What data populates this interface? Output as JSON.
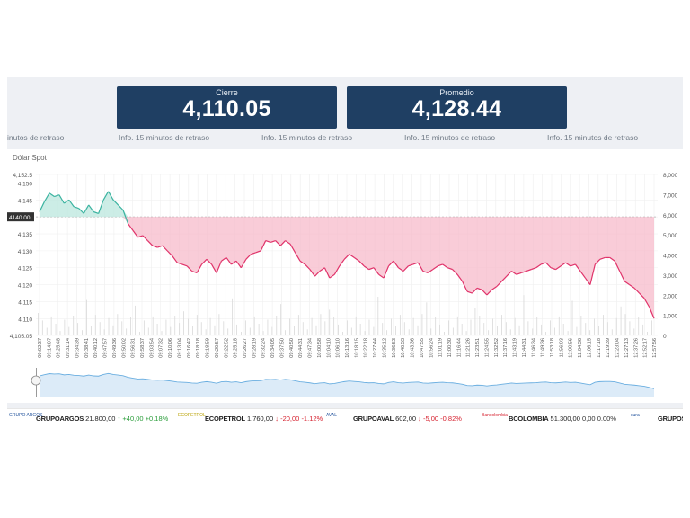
{
  "cards": [
    {
      "label": "Cierre",
      "value": "4,110.05"
    },
    {
      "label": "Promedio",
      "value": "4,128.44"
    }
  ],
  "info_texts": [
    "inutos de retraso",
    "Info. 15 minutos de retraso",
    "Info. 15 minutos de retraso",
    "Info. 15 minutos de retraso",
    "Info. 15 minutos de retraso"
  ],
  "chart_data": {
    "type": "line",
    "title": "Dólar Spot",
    "reference_line": 4140.0,
    "reference_label": "4140.00",
    "y_left_ticks": [
      "4,152.5",
      "4,150",
      "4,145",
      "4,140",
      "4,135",
      "4,130",
      "4,125",
      "4,120",
      "4,115",
      "4,110",
      "4,105.05"
    ],
    "y_left_range": [
      4105.05,
      4152.5
    ],
    "y_right_ticks": [
      "8,000",
      "7,000",
      "6,000",
      "5,000",
      "4,000",
      "3,000",
      "2,000",
      "1,000",
      "0"
    ],
    "y_right_range": [
      0,
      8000
    ],
    "x_labels": [
      "09:02:37",
      "09:14:07",
      "09:25:48",
      "09:31:14",
      "09:34:39",
      "09:38:41",
      "09:40:12",
      "09:47:57",
      "09:49:36",
      "09:50:02",
      "09:56:31",
      "09:58:37",
      "09:03:54",
      "09:07:32",
      "09:10:06",
      "09:13:04",
      "09:16:42",
      "09:18:18",
      "09:18:59",
      "09:20:57",
      "09:22:52",
      "09:25:18",
      "09:26:27",
      "09:28:19",
      "09:32:24",
      "09:34:05",
      "09:37:50",
      "09:40:50",
      "09:44:31",
      "09:47:34",
      "10:00:58",
      "10:04:10",
      "10:06:10",
      "10:13:16",
      "10:18:15",
      "10:22:18",
      "10:27:44",
      "10:35:12",
      "10:36:53",
      "10:40:53",
      "10:43:36",
      "10:47:55",
      "10:56:24",
      "11:01:19",
      "11:00:30",
      "11:16:44",
      "11:21:26",
      "11:23:51",
      "11:24:55",
      "11:32:52",
      "11:37:16",
      "11:43:19",
      "11:44:31",
      "11:46:34",
      "11:49:36",
      "11:53:18",
      "11:56:03",
      "12:00:56",
      "12:04:36",
      "12:06:15",
      "12:17:18",
      "12:19:39",
      "12:23:04",
      "12:27:13",
      "12:37:26",
      "12:52:17",
      "12:57:56"
    ],
    "series": [
      {
        "values": [
          4141.5,
          4144.5,
          4147,
          4146,
          4146.5,
          4144,
          4145,
          4143,
          4142.5,
          4141,
          4143.5,
          4141.5,
          4141,
          4145,
          4147.5,
          4145,
          4143.5,
          4142,
          4138,
          4136,
          4134,
          4134.5,
          4133,
          4131.5,
          4131,
          4131.5,
          4130,
          4128.5,
          4126.5,
          4126,
          4125.5,
          4124,
          4123.5,
          4126,
          4127.5,
          4126,
          4123.5,
          4127,
          4128,
          4126,
          4127,
          4125,
          4127.5,
          4129,
          4129.5,
          4130,
          4133,
          4132.5,
          4133,
          4131.5,
          4133,
          4132,
          4129.5,
          4127,
          4126,
          4124.5,
          4122.5,
          4124,
          4125,
          4122,
          4123,
          4125.5,
          4127.5,
          4129,
          4128,
          4127,
          4125.5,
          4124.5,
          4125,
          4123,
          4122,
          4125.5,
          4127,
          4125,
          4124,
          4125.5,
          4126,
          4126.5,
          4124,
          4123.5,
          4124.5,
          4125.5,
          4126,
          4125,
          4124.5,
          4123,
          4121,
          4118,
          4117.5,
          4119,
          4118.5,
          4117,
          4118.5,
          4119.5,
          4121,
          4122.5,
          4124,
          4123,
          4123.5,
          4124,
          4124.5,
          4125,
          4126,
          4126.5,
          4125,
          4124.5,
          4125.5,
          4126.5,
          4125.5,
          4126,
          4124,
          4122,
          4120,
          4126,
          4127.5,
          4128,
          4128,
          4127,
          4124,
          4121,
          4120,
          4119,
          4117.5,
          4116,
          4113.5,
          4110.05
        ]
      }
    ],
    "volume_note": "bars in background"
  },
  "ticker": [
    {
      "logo": "GRUPO ARGOS",
      "name": "GRUPOARGOS",
      "price": "21.800,00",
      "arrow": "↑",
      "change": "+40,00",
      "pct": "+0.18%",
      "dir": "pos"
    },
    {
      "logo": "ECOPETROL",
      "name": "ECOPETROL",
      "price": "1.760,00",
      "arrow": "↓",
      "change": "-20,00",
      "pct": "-1.12%",
      "dir": "neg"
    },
    {
      "logo": "AVAL",
      "name": "GRUPOAVAL",
      "price": "602,00",
      "arrow": "↓",
      "change": "-5,00",
      "pct": "-0.82%",
      "dir": "neg"
    },
    {
      "logo": "Bancolombia",
      "name": "BCOLOMBIA",
      "price": "51.300,00",
      "arrow": "",
      "change": "0,00",
      "pct": "0.00%",
      "dir": "neu"
    },
    {
      "logo": "sura",
      "name": "GRUPOSU",
      "price": "",
      "arrow": "",
      "change": "",
      "pct": "",
      "dir": "neu"
    }
  ],
  "colors": {
    "card_bg": "#1f3f63",
    "line_up": "#3bb3a0",
    "line_down": "#e0336a",
    "area_down": "#f7b6c8",
    "area_up": "#bfe8e0",
    "nav": "#6aaee0"
  }
}
